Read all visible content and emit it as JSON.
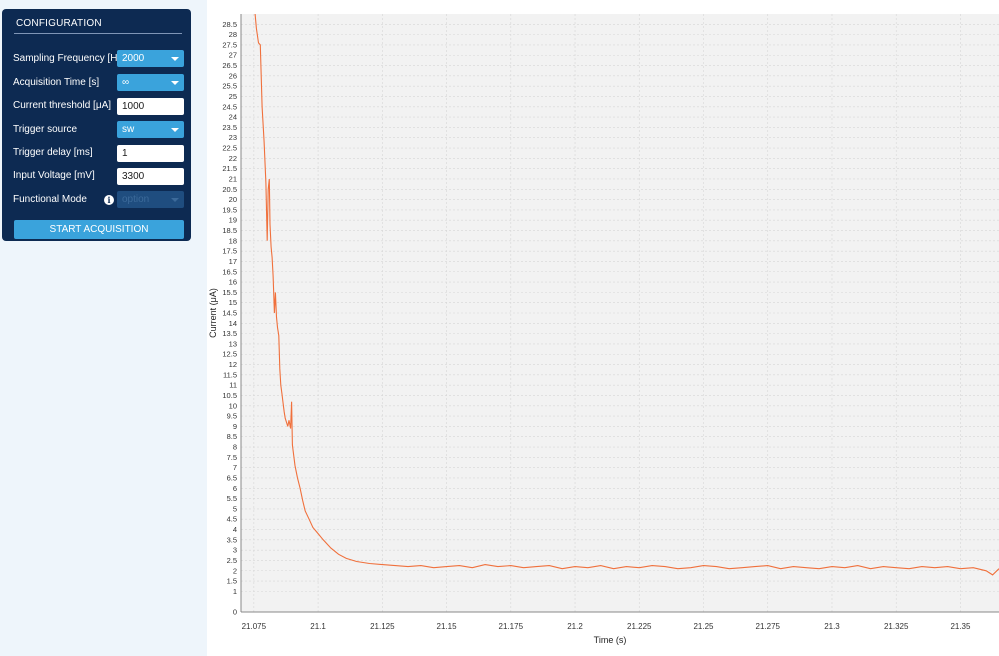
{
  "config": {
    "title": "CONFIGURATION",
    "rows": [
      {
        "label": "Sampling Frequency [Hz]",
        "type": "select",
        "value": "2000"
      },
      {
        "label": "Acquisition Time [s]",
        "type": "select",
        "value": "∞"
      },
      {
        "label": "Current threshold [μA]",
        "type": "input",
        "value": "1000"
      },
      {
        "label": "Trigger source",
        "type": "select",
        "value": "sw"
      },
      {
        "label": "Trigger delay [ms]",
        "type": "input",
        "value": "1"
      },
      {
        "label": "Input Voltage [mV]",
        "type": "input",
        "value": "3300"
      },
      {
        "label": "Functional Mode",
        "type": "select",
        "value": "option",
        "disabled": true
      }
    ],
    "info_icon": "info-icon",
    "start_button": "START ACQUISITION"
  },
  "colors": {
    "panel": "#0d2a52",
    "accent": "#3aa3dc",
    "trace": "#f0703c",
    "plot_bg": "#f2f2f2"
  },
  "chart_data": {
    "type": "line",
    "xlabel": "Time (s)",
    "ylabel": "Current (μA)",
    "xlim": [
      21.07,
      21.365
    ],
    "ylim": [
      0,
      29
    ],
    "xticks": [
      21.075,
      21.1,
      21.125,
      21.15,
      21.175,
      21.2,
      21.225,
      21.25,
      21.275,
      21.3,
      21.325,
      21.35
    ],
    "yticks": [
      0,
      1,
      1.5,
      2,
      2.5,
      3,
      3.5,
      4,
      4.5,
      5,
      5.5,
      6,
      6.5,
      7,
      7.5,
      8,
      8.5,
      9,
      9.5,
      10,
      10.5,
      11,
      11.5,
      12,
      12.5,
      13,
      13.5,
      14,
      14.5,
      15,
      15.5,
      16,
      16.5,
      17,
      17.5,
      18,
      18.5,
      19,
      19.5,
      20,
      20.5,
      21,
      21.5,
      22,
      22.5,
      23,
      23.5,
      24,
      24.5,
      25,
      25.5,
      26,
      26.5,
      27,
      27.5,
      28,
      28.5
    ],
    "grid": true,
    "series": [
      {
        "x": [
          21.0755,
          21.076,
          21.0768,
          21.0775,
          21.0782,
          21.079,
          21.0797,
          21.0802,
          21.0806,
          21.081,
          21.0813,
          21.0817,
          21.0821,
          21.0825,
          21.083,
          21.0834,
          21.0838,
          21.0842,
          21.0847,
          21.0851,
          21.0855,
          21.0859,
          21.0863,
          21.0868,
          21.0872,
          21.0877,
          21.0882,
          21.0887,
          21.0893,
          21.0897,
          21.09,
          21.0905,
          21.091,
          21.092,
          21.093,
          21.094,
          21.095,
          21.0965,
          21.098,
          21.1,
          21.102,
          21.105,
          21.108,
          21.111,
          21.115,
          21.12,
          21.125,
          21.13,
          21.135,
          21.14,
          21.145,
          21.15,
          21.155,
          21.16,
          21.165,
          21.17,
          21.175,
          21.18,
          21.185,
          21.19,
          21.195,
          21.2,
          21.205,
          21.21,
          21.215,
          21.22,
          21.225,
          21.23,
          21.235,
          21.24,
          21.245,
          21.25,
          21.255,
          21.26,
          21.265,
          21.27,
          21.275,
          21.28,
          21.285,
          21.29,
          21.295,
          21.3,
          21.305,
          21.31,
          21.315,
          21.32,
          21.325,
          21.33,
          21.335,
          21.34,
          21.345,
          21.35,
          21.355,
          21.36,
          21.3625,
          21.365
        ],
        "y": [
          29.0,
          28.3,
          27.6,
          27.5,
          24.5,
          22.8,
          20.8,
          18.0,
          20.5,
          21.0,
          18.8,
          17.7,
          17.2,
          16.3,
          14.5,
          15.5,
          14.3,
          13.8,
          13.4,
          11.8,
          11.0,
          10.6,
          10.2,
          9.7,
          9.4,
          9.2,
          9.0,
          9.3,
          8.9,
          10.2,
          8.1,
          7.6,
          7.1,
          6.5,
          6.0,
          5.4,
          4.9,
          4.5,
          4.1,
          3.8,
          3.5,
          3.1,
          2.8,
          2.6,
          2.45,
          2.35,
          2.3,
          2.25,
          2.2,
          2.25,
          2.15,
          2.2,
          2.25,
          2.15,
          2.3,
          2.2,
          2.25,
          2.15,
          2.2,
          2.25,
          2.1,
          2.2,
          2.15,
          2.25,
          2.1,
          2.2,
          2.15,
          2.25,
          2.2,
          2.1,
          2.15,
          2.25,
          2.2,
          2.1,
          2.15,
          2.2,
          2.25,
          2.1,
          2.2,
          2.15,
          2.1,
          2.2,
          2.15,
          2.25,
          2.1,
          2.2,
          2.15,
          2.1,
          2.2,
          2.15,
          2.2,
          2.1,
          2.15,
          2.0,
          1.8,
          2.1
        ]
      }
    ]
  }
}
